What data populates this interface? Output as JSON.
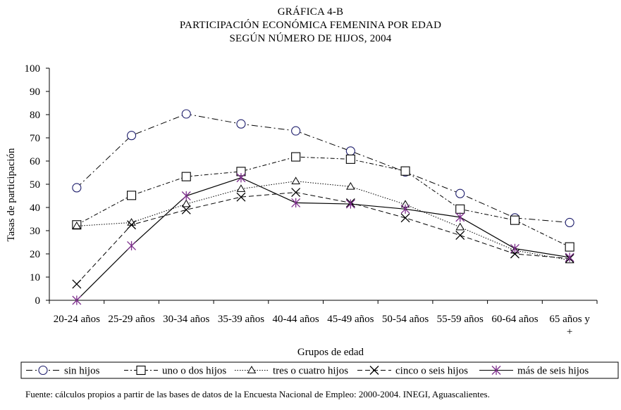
{
  "chart_data": {
    "type": "line",
    "title_lines": [
      "GRÁFICA 4-B",
      "PARTICIPACIÓN ECONÓMICA FEMENINA POR EDAD",
      "SEGÚN NÚMERO DE HIJOS, 2004"
    ],
    "xlabel": "Grupos de edad",
    "ylabel": "Tasas de participación",
    "ylim": [
      0,
      100
    ],
    "yticks": [
      "0",
      "10",
      "20",
      "30",
      "40",
      "50",
      "60",
      "70",
      "80",
      "90",
      "100"
    ],
    "categories": [
      "20-24 años",
      "25-29 años",
      "30-34 años",
      "35-39 años",
      "40-44 años",
      "45-49 años",
      "50-54 años",
      "55-59 años",
      "60-64 años",
      "65 años y +"
    ],
    "grid": false,
    "legend_position": "bottom",
    "series": [
      {
        "name": "sin hijos",
        "marker": "circle",
        "dash": "dashdot-long",
        "values": [
          48.5,
          71,
          80.3,
          76,
          73,
          64.3,
          55.3,
          46,
          35.5,
          33.5
        ]
      },
      {
        "name": "uno o dos hijos",
        "marker": "square",
        "dash": "dashdot",
        "values": [
          32.5,
          45.2,
          53.3,
          55.5,
          61.8,
          60.8,
          55.7,
          39.3,
          34.5,
          23
        ]
      },
      {
        "name": "tres o cuatro hijos",
        "marker": "triangle",
        "dash": "dotted",
        "values": [
          32,
          33.5,
          41.5,
          48,
          51.3,
          49,
          41.3,
          31.5,
          21.5,
          17.3
        ]
      },
      {
        "name": "cinco o seis hijos",
        "marker": "x",
        "dash": "dashed",
        "values": [
          7,
          32.5,
          39,
          44.5,
          46.5,
          42,
          35.5,
          28,
          20,
          18
        ]
      },
      {
        "name": "más de seis hijos",
        "marker": "star",
        "dash": "solid",
        "values": [
          0,
          23.5,
          45,
          52.8,
          42,
          41.5,
          39.3,
          35.8,
          22.3,
          18.5
        ]
      }
    ]
  },
  "footer": {
    "source": "Fuente: cálculos propios a partir de las bases de datos de la Encuesta Nacional de Empleo: 2000-2004. INEGI, Aguascalientes."
  }
}
